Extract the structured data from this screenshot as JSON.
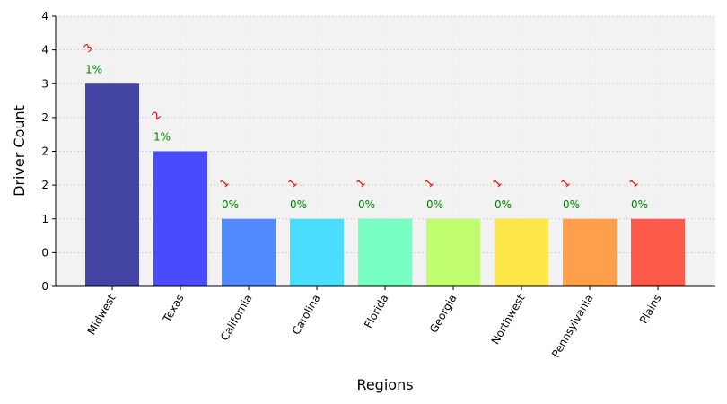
{
  "chart_data": {
    "type": "bar",
    "title": "",
    "xlabel": "Regions",
    "ylabel": "Driver Count",
    "categories": [
      "Midwest",
      "Texas",
      "California",
      "Carolina",
      "Florida",
      "Georgia",
      "Northwest",
      "Pennsylvania",
      "Plains"
    ],
    "values": [
      3,
      2,
      1,
      1,
      1,
      1,
      1,
      1,
      1
    ],
    "count_labels": [
      "3",
      "2",
      "1",
      "1",
      "1",
      "1",
      "1",
      "1",
      "1"
    ],
    "percent_labels": [
      "1%",
      "1%",
      "0%",
      "0%",
      "0%",
      "0%",
      "0%",
      "0%",
      "0%"
    ],
    "ylim": [
      0,
      4
    ],
    "ytick_values": [
      0,
      0.5,
      1,
      1.5,
      2,
      2.5,
      3,
      3.5,
      4
    ],
    "ytick_labels": [
      "0",
      "0",
      "1",
      "2",
      "2",
      "2",
      "3",
      "4",
      "4"
    ],
    "grid": true,
    "plot_background": "#f2f2f2",
    "count_label_color": "#ff0000",
    "percent_label_color": "#008000",
    "bar_colors": [
      "#2b2b98",
      "#3333ff",
      "#3a7bff",
      "#33d9ff",
      "#66ffbb",
      "#b8ff5c",
      "#ffe433",
      "#ff9433",
      "#ff4433"
    ]
  }
}
